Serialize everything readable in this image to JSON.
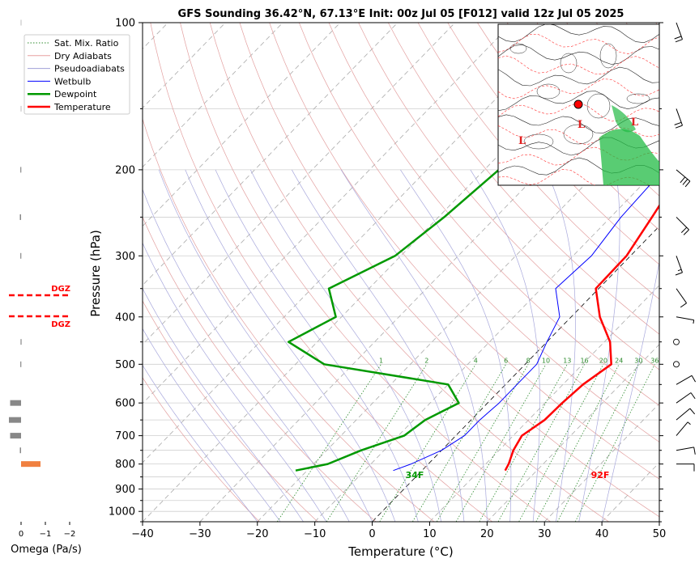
{
  "title": "GFS Sounding 36.42°N, 67.13°E Init: 00z Jul 05 [F012] valid 12z Jul 05 2025",
  "chart_data": {
    "type": "line",
    "subtype": "skew-T log-P",
    "xlabel": "Temperature (°C)",
    "ylabel": "Pressure (hPa)",
    "xlim": [
      -40,
      50
    ],
    "ylim": [
      1050,
      100
    ],
    "y_scale": "log",
    "x_ticks": [
      -40,
      -30,
      -20,
      -10,
      0,
      10,
      20,
      30,
      40,
      50
    ],
    "y_ticks": [
      100,
      200,
      300,
      400,
      500,
      600,
      700,
      800,
      900,
      1000
    ],
    "legend": {
      "position": "top-left",
      "entries": [
        {
          "label": "Sat. Mix. Ratio",
          "color": "#2e8b2e",
          "style": "dotted"
        },
        {
          "label": "Dry Adiabats",
          "color": "#e8a0a0",
          "style": "solid"
        },
        {
          "label": "Pseudoadiabats",
          "color": "#a0a0d8",
          "style": "solid"
        },
        {
          "label": "Wetbulb",
          "color": "#0000ff",
          "style": "solid"
        },
        {
          "label": "Dewpoint",
          "color": "#009900",
          "style": "solid"
        },
        {
          "label": "Temperature",
          "color": "#ff0000",
          "style": "solid"
        }
      ]
    },
    "series": [
      {
        "name": "Temperature",
        "color": "#ff0000",
        "points": [
          [
            -9.8,
            100
          ],
          [
            -7.6,
            150
          ],
          [
            -5.5,
            200
          ],
          [
            -2.8,
            250
          ],
          [
            -0.7,
            300
          ],
          [
            -0.5,
            350
          ],
          [
            5.0,
            400
          ],
          [
            11.0,
            450
          ],
          [
            15.0,
            500
          ],
          [
            13.5,
            550
          ],
          [
            13.0,
            600
          ],
          [
            12.8,
            650
          ],
          [
            11.5,
            700
          ],
          [
            12.5,
            750
          ],
          [
            14.0,
            800
          ],
          [
            14.5,
            825
          ]
        ]
      },
      {
        "name": "Dewpoint",
        "color": "#009900",
        "points": [
          [
            -26.2,
            100
          ],
          [
            -32.5,
            150
          ],
          [
            -37.5,
            200
          ],
          [
            -39.0,
            250
          ],
          [
            -41.0,
            300
          ],
          [
            -47.0,
            350
          ],
          [
            -41.0,
            400
          ],
          [
            -45.0,
            450
          ],
          [
            -35.0,
            500
          ],
          [
            -10.0,
            550
          ],
          [
            -5.0,
            600
          ],
          [
            -8.0,
            650
          ],
          [
            -9.0,
            700
          ],
          [
            -14.0,
            750
          ],
          [
            -17.5,
            800
          ],
          [
            -22.0,
            825
          ]
        ]
      },
      {
        "name": "Wetbulb",
        "color": "#0000ff",
        "points": [
          [
            -9.8,
            100
          ],
          [
            -8.0,
            150
          ],
          [
            -8.8,
            200
          ],
          [
            -8.2,
            250
          ],
          [
            -6.8,
            300
          ],
          [
            -7.5,
            350
          ],
          [
            -2.0,
            400
          ],
          [
            0.0,
            450
          ],
          [
            2.0,
            500
          ],
          [
            2.0,
            550
          ],
          [
            2.0,
            600
          ],
          [
            1.5,
            650
          ],
          [
            1.5,
            700
          ],
          [
            0.0,
            750
          ],
          [
            -3.0,
            800
          ],
          [
            -5.0,
            825
          ]
        ]
      }
    ],
    "surface_labels": {
      "temperature": "92F",
      "dewpoint": "34F"
    },
    "mixing_ratio_labels": [
      "1",
      "2",
      "4",
      "6",
      "8",
      "10",
      "13",
      "16",
      "20",
      "24",
      "30",
      "36"
    ],
    "omega_panel": {
      "xlabel": "Omega (Pa/s)",
      "x_ticks": [
        "0",
        "−1",
        "−2"
      ],
      "dgz_label": "DGZ",
      "dgz_levels": [
        360,
        397
      ]
    }
  }
}
